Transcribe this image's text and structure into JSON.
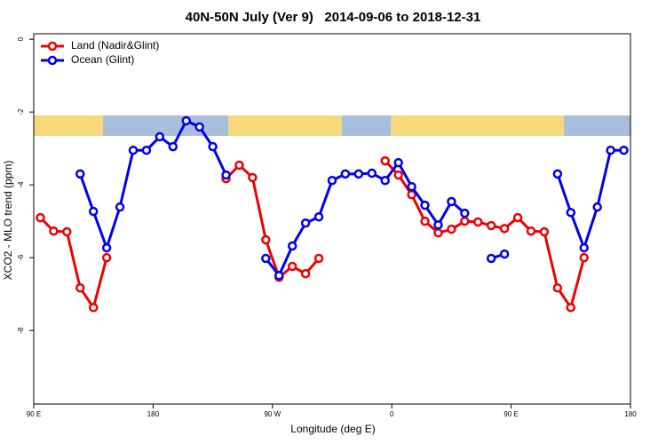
{
  "chart_data": {
    "type": "line",
    "title": "40N-50N July (Ver 9)   2014-09-06 to 2018-12-31",
    "x_label": "Longitude (deg E)",
    "y_label": "XCO2 - MLO trend (ppm)",
    "x": [
      95,
      105,
      115,
      125,
      135,
      145,
      155,
      165,
      175,
      185,
      195,
      205,
      215,
      225,
      235,
      245,
      255,
      265,
      275,
      285,
      295,
      305,
      315,
      325,
      335,
      345,
      355,
      365,
      375,
      385,
      395,
      405,
      415,
      425,
      435,
      445,
      455,
      465,
      475,
      485,
      495,
      505,
      515,
      525,
      535
    ],
    "series": [
      {
        "name": "Land (Nadir&Glint)",
        "color": "#ee0000",
        "values": [
          -4.9,
          -5.27,
          -5.29,
          -6.83,
          -7.37,
          -6.0,
          null,
          null,
          null,
          null,
          null,
          null,
          null,
          null,
          -3.83,
          -3.46,
          -3.8,
          -5.51,
          -6.54,
          -6.24,
          -6.44,
          -6.02,
          null,
          null,
          null,
          null,
          -3.34,
          -3.73,
          -4.27,
          -5.0,
          -5.32,
          -5.22,
          -5.0,
          -5.02,
          -5.12,
          -5.2,
          -4.9,
          -5.27,
          -5.29,
          -6.83,
          -7.37,
          -6.0,
          null,
          null,
          null
        ]
      },
      {
        "name": "Ocean (Glint)",
        "color": "#0000ee",
        "values": [
          null,
          null,
          null,
          -3.7,
          -4.73,
          -5.73,
          -4.61,
          -3.05,
          -3.05,
          -2.68,
          -2.95,
          -2.24,
          -2.41,
          -2.95,
          -3.73,
          null,
          null,
          -6.02,
          -6.49,
          -5.68,
          -5.05,
          -4.88,
          -3.88,
          -3.7,
          -3.7,
          -3.68,
          -3.88,
          -3.39,
          -4.05,
          -4.56,
          -5.1,
          -4.46,
          -4.78,
          null,
          -6.02,
          -5.9,
          null,
          null,
          null,
          -3.7,
          -4.76,
          -5.73,
          -4.61,
          -3.05,
          -3.05
        ]
      }
    ],
    "xlim": [
      90,
      540
    ],
    "xticks": [
      {
        "value": 90,
        "label": "90 E"
      },
      {
        "value": 180,
        "label": "180"
      },
      {
        "value": 270,
        "label": "90 W"
      },
      {
        "value": 360,
        "label": "0"
      },
      {
        "value": 450,
        "label": "90 E"
      },
      {
        "value": 540,
        "label": "180"
      }
    ],
    "ylim": [
      -10.02,
      0.15
    ],
    "yticks": [
      0,
      -2,
      -4,
      -6,
      -8
    ],
    "legend": "top-left"
  }
}
